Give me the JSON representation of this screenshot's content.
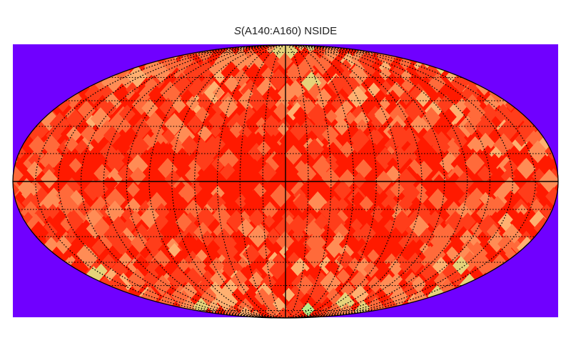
{
  "figure": {
    "title_symbol": "S",
    "title_rest": "(A140:A160) NSIDE",
    "projection": "mollweide",
    "background_color": "#7000ff",
    "grid": true,
    "grid_style": "dotted",
    "palette": [
      "#ff1a00",
      "#ff3d1a",
      "#ff6a3a",
      "#ff8c55",
      "#ffb070",
      "#e6d27a",
      "#b8ec8a"
    ]
  }
}
